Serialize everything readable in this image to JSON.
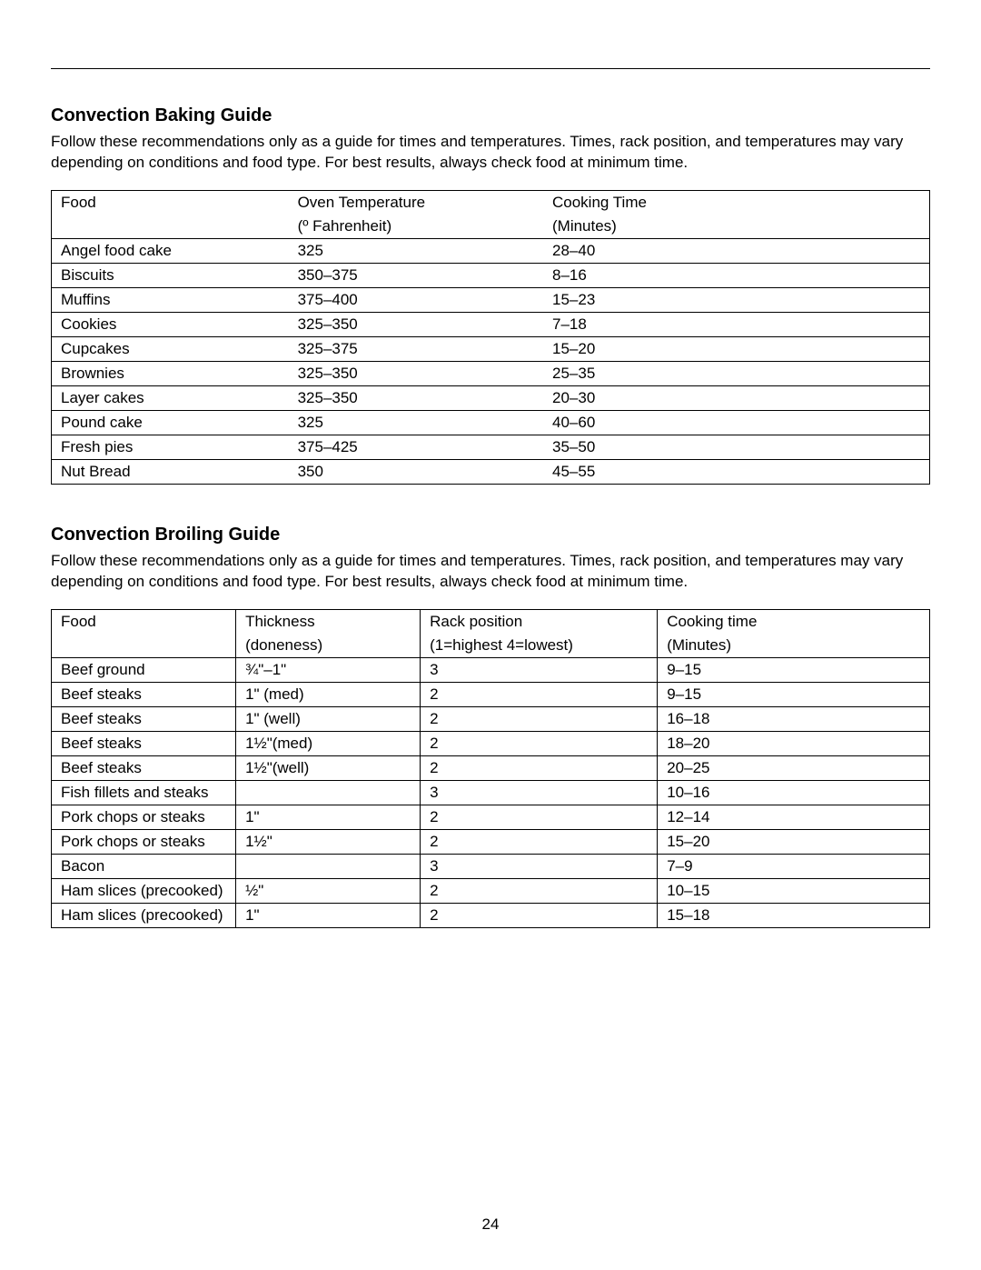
{
  "page_number": "24",
  "baking": {
    "title": "Convection Baking Guide",
    "desc": "Follow these recommendations only as a guide for times and temperatures. Times, rack position, and temperatures may vary depending on conditions and food type. For best results, always check food at minimum time.",
    "header": {
      "c1": "Food",
      "c2": "Oven Temperature",
      "c3": "Cooking Time"
    },
    "subheader": {
      "c1": "",
      "c2": "(º Fahrenheit)",
      "c3": "(Minutes)"
    },
    "rows": [
      {
        "c1": "Angel food cake",
        "c2": "325",
        "c3": "28–40"
      },
      {
        "c1": "Biscuits",
        "c2": "350–375",
        "c3": "8–16"
      },
      {
        "c1": "Muffins",
        "c2": "375–400",
        "c3": "15–23"
      },
      {
        "c1": "Cookies",
        "c2": "325–350",
        "c3": "7–18"
      },
      {
        "c1": "Cupcakes",
        "c2": "325–375",
        "c3": "15–20"
      },
      {
        "c1": "Brownies",
        "c2": "325–350",
        "c3": "25–35"
      },
      {
        "c1": "Layer cakes",
        "c2": "325–350",
        "c3": "20–30"
      },
      {
        "c1": "Pound cake",
        "c2": "325",
        "c3": "40–60"
      },
      {
        "c1": "Fresh pies",
        "c2": "375–425",
        "c3": "35–50"
      },
      {
        "c1": "Nut Bread",
        "c2": "350",
        "c3": "45–55"
      }
    ]
  },
  "broiling": {
    "title": "Convection Broiling Guide",
    "desc": "Follow these recommendations only as a guide for times and temperatures. Times, rack position, and temperatures may vary depending on conditions and food type. For best results, always check food at minimum time.",
    "header": {
      "c1": "Food",
      "c2": "Thickness",
      "c3": "Rack position",
      "c4": "Cooking time"
    },
    "subheader": {
      "c1": "",
      "c2": "(doneness)",
      "c3": "(1=highest 4=lowest)",
      "c4": "(Minutes)"
    },
    "rows": [
      {
        "c1": "Beef ground",
        "c2": "¾\"–1\"",
        "c3": "3",
        "c4": "9–15"
      },
      {
        "c1": "Beef steaks",
        "c2": "1\" (med)",
        "c3": "2",
        "c4": "9–15"
      },
      {
        "c1": "Beef steaks",
        "c2": "1\" (well)",
        "c3": "2",
        "c4": "16–18"
      },
      {
        "c1": "Beef steaks",
        "c2": "1½\"(med)",
        "c3": "2",
        "c4": "18–20"
      },
      {
        "c1": "Beef steaks",
        "c2": "1½\"(well)",
        "c3": "2",
        "c4": "20–25"
      },
      {
        "c1": "Fish fillets and steaks",
        "c2": "",
        "c3": "3",
        "c4": "10–16"
      },
      {
        "c1": "Pork chops or steaks",
        "c2": "1\"",
        "c3": "2",
        "c4": "12–14"
      },
      {
        "c1": "Pork chops or steaks",
        "c2": "1½\"",
        "c3": "2",
        "c4": "15–20"
      },
      {
        "c1": "Bacon",
        "c2": "",
        "c3": "3",
        "c4": "7–9"
      },
      {
        "c1": "Ham slices (precooked)",
        "c2": "½\"",
        "c3": "2",
        "c4": "10–15"
      },
      {
        "c1": "Ham slices (precooked)",
        "c2": "1\"",
        "c3": "2",
        "c4": "15–18"
      }
    ]
  }
}
